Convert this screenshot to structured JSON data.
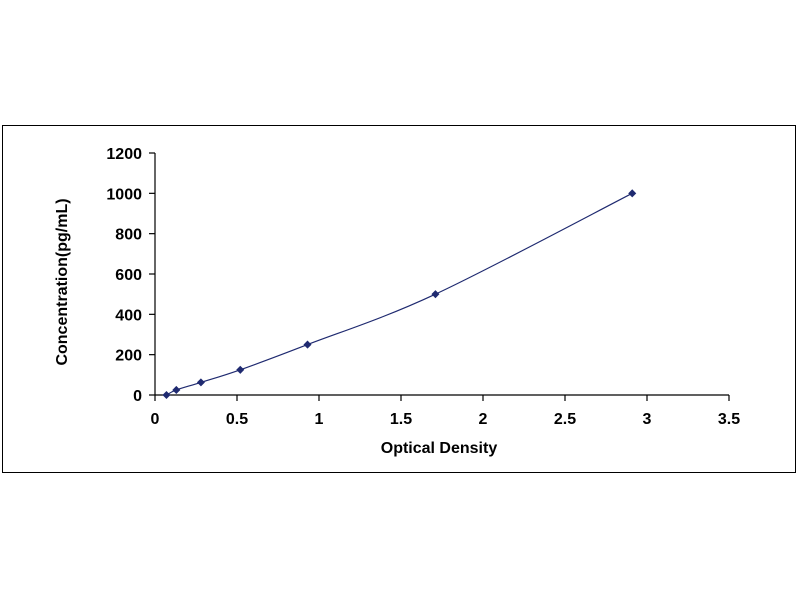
{
  "chart_data": {
    "type": "scatter",
    "title": "",
    "xlabel": "Optical Density",
    "ylabel": "Concentration(pg/mL)",
    "xlim": [
      0,
      3.5
    ],
    "ylim": [
      0,
      1200
    ],
    "x_ticks": [
      0,
      0.5,
      1,
      1.5,
      2,
      2.5,
      3,
      3.5
    ],
    "x_tick_labels": [
      "0",
      "0.5",
      "1",
      "1.5",
      "2",
      "2.5",
      "3",
      "3.5"
    ],
    "y_ticks": [
      0,
      200,
      400,
      600,
      800,
      1000,
      1200
    ],
    "y_tick_labels": [
      "0",
      "200",
      "400",
      "600",
      "800",
      "1000",
      "1200"
    ],
    "grid": false,
    "legend": "none",
    "trendline": "smooth",
    "series": [
      {
        "x": [
          0.07,
          0.13,
          0.28,
          0.52,
          0.93,
          1.71,
          2.91
        ],
        "y": [
          0,
          25,
          62.5,
          125,
          250,
          500,
          1000
        ],
        "color": "#1f2a70"
      }
    ]
  }
}
